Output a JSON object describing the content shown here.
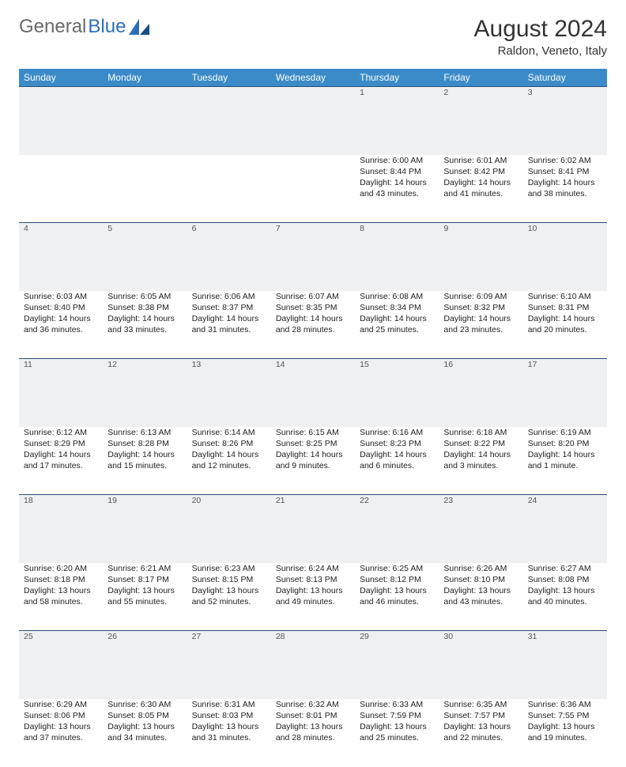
{
  "logo": {
    "text1": "General",
    "text2": "Blue"
  },
  "title": "August 2024",
  "location": "Raldon, Veneto, Italy",
  "colors": {
    "header_bg": "#3b8bc9",
    "header_text": "#ffffff",
    "daynum_bg": "#eef0f1",
    "rule": "#2a4e78",
    "logo_gray": "#6a6a6a",
    "logo_blue": "#2d6fb5"
  },
  "day_headers": [
    "Sunday",
    "Monday",
    "Tuesday",
    "Wednesday",
    "Thursday",
    "Friday",
    "Saturday"
  ],
  "weeks": [
    {
      "nums": [
        "",
        "",
        "",
        "",
        "1",
        "2",
        "3"
      ],
      "cells": [
        null,
        null,
        null,
        null,
        {
          "sunrise": "6:00 AM",
          "sunset": "8:44 PM",
          "daylight": "14 hours and 43 minutes."
        },
        {
          "sunrise": "6:01 AM",
          "sunset": "8:42 PM",
          "daylight": "14 hours and 41 minutes."
        },
        {
          "sunrise": "6:02 AM",
          "sunset": "8:41 PM",
          "daylight": "14 hours and 38 minutes."
        }
      ]
    },
    {
      "nums": [
        "4",
        "5",
        "6",
        "7",
        "8",
        "9",
        "10"
      ],
      "cells": [
        {
          "sunrise": "6:03 AM",
          "sunset": "8:40 PM",
          "daylight": "14 hours and 36 minutes."
        },
        {
          "sunrise": "6:05 AM",
          "sunset": "8:38 PM",
          "daylight": "14 hours and 33 minutes."
        },
        {
          "sunrise": "6:06 AM",
          "sunset": "8:37 PM",
          "daylight": "14 hours and 31 minutes."
        },
        {
          "sunrise": "6:07 AM",
          "sunset": "8:35 PM",
          "daylight": "14 hours and 28 minutes."
        },
        {
          "sunrise": "6:08 AM",
          "sunset": "8:34 PM",
          "daylight": "14 hours and 25 minutes."
        },
        {
          "sunrise": "6:09 AM",
          "sunset": "8:32 PM",
          "daylight": "14 hours and 23 minutes."
        },
        {
          "sunrise": "6:10 AM",
          "sunset": "8:31 PM",
          "daylight": "14 hours and 20 minutes."
        }
      ]
    },
    {
      "nums": [
        "11",
        "12",
        "13",
        "14",
        "15",
        "16",
        "17"
      ],
      "cells": [
        {
          "sunrise": "6:12 AM",
          "sunset": "8:29 PM",
          "daylight": "14 hours and 17 minutes."
        },
        {
          "sunrise": "6:13 AM",
          "sunset": "8:28 PM",
          "daylight": "14 hours and 15 minutes."
        },
        {
          "sunrise": "6:14 AM",
          "sunset": "8:26 PM",
          "daylight": "14 hours and 12 minutes."
        },
        {
          "sunrise": "6:15 AM",
          "sunset": "8:25 PM",
          "daylight": "14 hours and 9 minutes."
        },
        {
          "sunrise": "6:16 AM",
          "sunset": "8:23 PM",
          "daylight": "14 hours and 6 minutes."
        },
        {
          "sunrise": "6:18 AM",
          "sunset": "8:22 PM",
          "daylight": "14 hours and 3 minutes."
        },
        {
          "sunrise": "6:19 AM",
          "sunset": "8:20 PM",
          "daylight": "14 hours and 1 minute."
        }
      ]
    },
    {
      "nums": [
        "18",
        "19",
        "20",
        "21",
        "22",
        "23",
        "24"
      ],
      "cells": [
        {
          "sunrise": "6:20 AM",
          "sunset": "8:18 PM",
          "daylight": "13 hours and 58 minutes."
        },
        {
          "sunrise": "6:21 AM",
          "sunset": "8:17 PM",
          "daylight": "13 hours and 55 minutes."
        },
        {
          "sunrise": "6:23 AM",
          "sunset": "8:15 PM",
          "daylight": "13 hours and 52 minutes."
        },
        {
          "sunrise": "6:24 AM",
          "sunset": "8:13 PM",
          "daylight": "13 hours and 49 minutes."
        },
        {
          "sunrise": "6:25 AM",
          "sunset": "8:12 PM",
          "daylight": "13 hours and 46 minutes."
        },
        {
          "sunrise": "6:26 AM",
          "sunset": "8:10 PM",
          "daylight": "13 hours and 43 minutes."
        },
        {
          "sunrise": "6:27 AM",
          "sunset": "8:08 PM",
          "daylight": "13 hours and 40 minutes."
        }
      ]
    },
    {
      "nums": [
        "25",
        "26",
        "27",
        "28",
        "29",
        "30",
        "31"
      ],
      "cells": [
        {
          "sunrise": "6:29 AM",
          "sunset": "8:06 PM",
          "daylight": "13 hours and 37 minutes."
        },
        {
          "sunrise": "6:30 AM",
          "sunset": "8:05 PM",
          "daylight": "13 hours and 34 minutes."
        },
        {
          "sunrise": "6:31 AM",
          "sunset": "8:03 PM",
          "daylight": "13 hours and 31 minutes."
        },
        {
          "sunrise": "6:32 AM",
          "sunset": "8:01 PM",
          "daylight": "13 hours and 28 minutes."
        },
        {
          "sunrise": "6:33 AM",
          "sunset": "7:59 PM",
          "daylight": "13 hours and 25 minutes."
        },
        {
          "sunrise": "6:35 AM",
          "sunset": "7:57 PM",
          "daylight": "13 hours and 22 minutes."
        },
        {
          "sunrise": "6:36 AM",
          "sunset": "7:55 PM",
          "daylight": "13 hours and 19 minutes."
        }
      ]
    }
  ],
  "labels": {
    "sunrise": "Sunrise:",
    "sunset": "Sunset:",
    "daylight": "Daylight:"
  }
}
